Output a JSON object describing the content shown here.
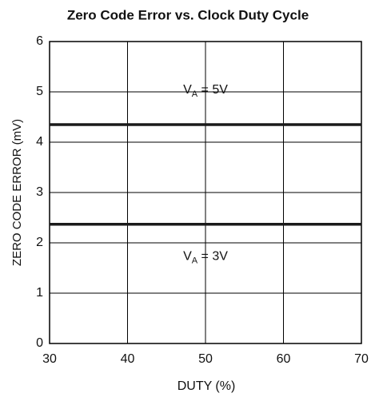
{
  "chart_data": {
    "type": "line",
    "title": "Zero Code Error vs. Clock Duty Cycle",
    "x_label": "DUTY (%)",
    "y_label": "ZERO CODE ERROR (mV)",
    "x": [
      30,
      70
    ],
    "series": [
      {
        "label": {
          "main": "V",
          "sub": "A",
          "rest": " = 5V"
        },
        "color": "#1a1a1a",
        "values": [
          4.35,
          4.35
        ]
      },
      {
        "label": {
          "main": "V",
          "sub": "A",
          "rest": " = 3V"
        },
        "color": "#1a1a1a",
        "values": [
          2.37,
          2.37
        ]
      }
    ],
    "xlim": [
      30,
      70
    ],
    "xticks": [
      30,
      40,
      50,
      60,
      70
    ],
    "ylim": [
      0,
      6
    ],
    "yticks": [
      0,
      1,
      2,
      3,
      4,
      5,
      6
    ],
    "grid": true
  }
}
